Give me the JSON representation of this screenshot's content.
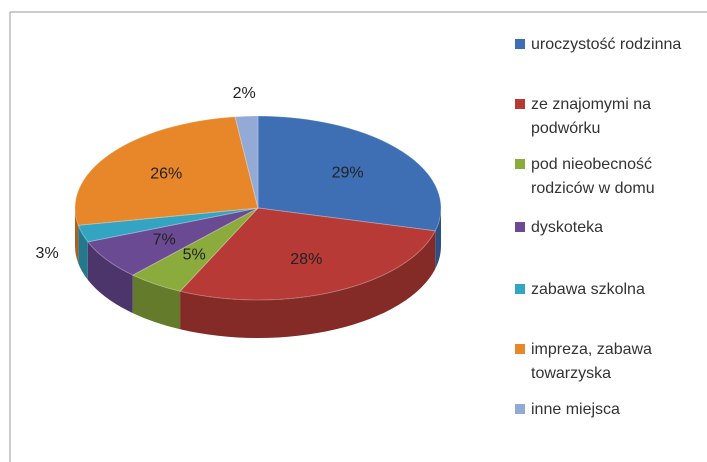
{
  "chart_data": {
    "type": "pie3d",
    "categories": [
      "uroczystość rodzinna",
      "ze znajomymi na podwórku",
      "pod nieobecność rodziców w domu",
      "dyskoteka",
      "zabawa szkolna",
      "impreza, zabawa towarzyska",
      "inne miejsca"
    ],
    "values": [
      29,
      28,
      5,
      7,
      3,
      26,
      2
    ],
    "value_labels": [
      "29%",
      "28%",
      "5%",
      "7%",
      "3%",
      "26%",
      "2%"
    ],
    "colors": [
      "#3e6fb5",
      "#b73a36",
      "#8bab3c",
      "#6a4a93",
      "#33a5c2",
      "#e8862a",
      "#93a9d6"
    ],
    "legend": "right"
  }
}
